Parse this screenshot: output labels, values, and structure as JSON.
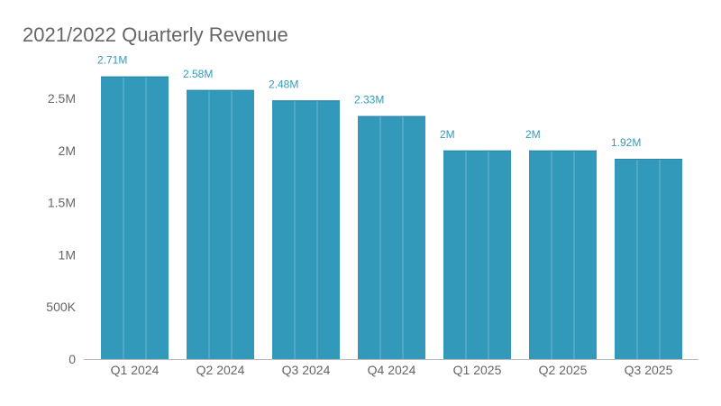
{
  "chart_data": {
    "type": "bar",
    "title": "2021/2022 Quarterly Revenue",
    "categories": [
      "Q1 2024",
      "Q2 2024",
      "Q3 2024",
      "Q4 2024",
      "Q1 2025",
      "Q2 2025",
      "Q3 2025"
    ],
    "values": [
      2710000,
      2580000,
      2480000,
      2330000,
      2000000,
      2000000,
      1920000
    ],
    "data_labels": [
      "2.71M",
      "2.58M",
      "2.48M",
      "2.33M",
      "2M",
      "2M",
      "1.92M"
    ],
    "yticks": [
      0,
      500000,
      1000000,
      1500000,
      2000000,
      2500000
    ],
    "ytick_labels": [
      "0",
      "500K",
      "1M",
      "1.5M",
      "2M",
      "2.5M"
    ],
    "ylim": [
      0,
      2700000
    ],
    "grid": false,
    "colors": {
      "bar": "#3399bb",
      "label": "#3399bb",
      "axis_text": "#666666"
    }
  }
}
